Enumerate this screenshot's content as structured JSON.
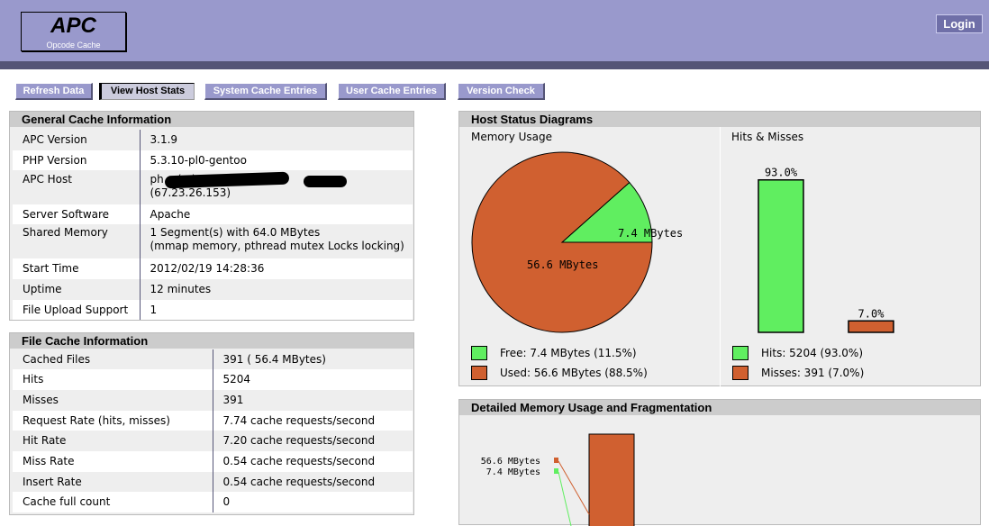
{
  "header": {
    "logo_title": "APC",
    "logo_subtitle": "Opcode Cache",
    "login_label": "Login"
  },
  "menu": [
    {
      "label": "Refresh Data"
    },
    {
      "label": "View Host Stats"
    },
    {
      "label": "System Cache Entries"
    },
    {
      "label": "User Cache Entries"
    },
    {
      "label": "Version Check"
    }
  ],
  "general": {
    "title": "General Cache Information",
    "rows": [
      {
        "key": "APC Version",
        "value": "3.1.9"
      },
      {
        "key": "PHP Version",
        "value": "5.3.10-pl0-gentoo"
      },
      {
        "key": "APC Host",
        "value": "ph            a (p              )",
        "value2": "(67.23.26.153)"
      },
      {
        "key": "Server Software",
        "value": "Apache"
      },
      {
        "key": "Shared Memory",
        "value": "1 Segment(s) with 64.0 MBytes",
        "value2": "(mmap memory, pthread mutex Locks locking)"
      },
      {
        "key": "Start Time",
        "value": "2012/02/19 14:28:36"
      },
      {
        "key": "Uptime",
        "value": "12 minutes"
      },
      {
        "key": "File Upload Support",
        "value": "1"
      }
    ]
  },
  "file_cache": {
    "title": "File Cache Information",
    "rows": [
      {
        "key": "Cached Files",
        "value": "391 ( 56.4 MBytes)"
      },
      {
        "key": "Hits",
        "value": "5204"
      },
      {
        "key": "Misses",
        "value": "391"
      },
      {
        "key": "Request Rate (hits, misses)",
        "value": "7.74 cache requests/second"
      },
      {
        "key": "Hit Rate",
        "value": "7.20 cache requests/second"
      },
      {
        "key": "Miss Rate",
        "value": "0.54 cache requests/second"
      },
      {
        "key": "Insert Rate",
        "value": "0.54 cache requests/second"
      },
      {
        "key": "Cache full count",
        "value": "0"
      }
    ]
  },
  "host_status": {
    "title": "Host Status Diagrams",
    "memory_title": "Memory Usage",
    "hits_title": "Hits & Misses",
    "memory_legend": [
      {
        "label": "Free: 7.4 MBytes (11.5%)",
        "color": "#60ee60"
      },
      {
        "label": "Used: 56.6 MBytes (88.5%)",
        "color": "#d06030"
      }
    ],
    "hits_legend": [
      {
        "label": "Hits: 5204 (93.0%)",
        "color": "#60ee60"
      },
      {
        "label": "Misses: 391 (7.0%)",
        "color": "#d06030"
      }
    ]
  },
  "fragmentation": {
    "title": "Detailed Memory Usage and Fragmentation",
    "labels": [
      "56.6 MBytes",
      "7.4 MBytes"
    ]
  },
  "chart_data": [
    {
      "type": "pie",
      "labels": [
        "7.4 MBytes",
        "56.6 MBytes"
      ],
      "values": [
        7.4,
        56.6
      ],
      "colors": [
        "#60ee60",
        "#d06030"
      ]
    },
    {
      "type": "bar",
      "categories": [
        "Hits",
        "Misses"
      ],
      "values": [
        93.0,
        7.0
      ],
      "data_labels": [
        "93.0%",
        "7.0%"
      ],
      "colors": [
        "#60ee60",
        "#d06030"
      ]
    }
  ]
}
